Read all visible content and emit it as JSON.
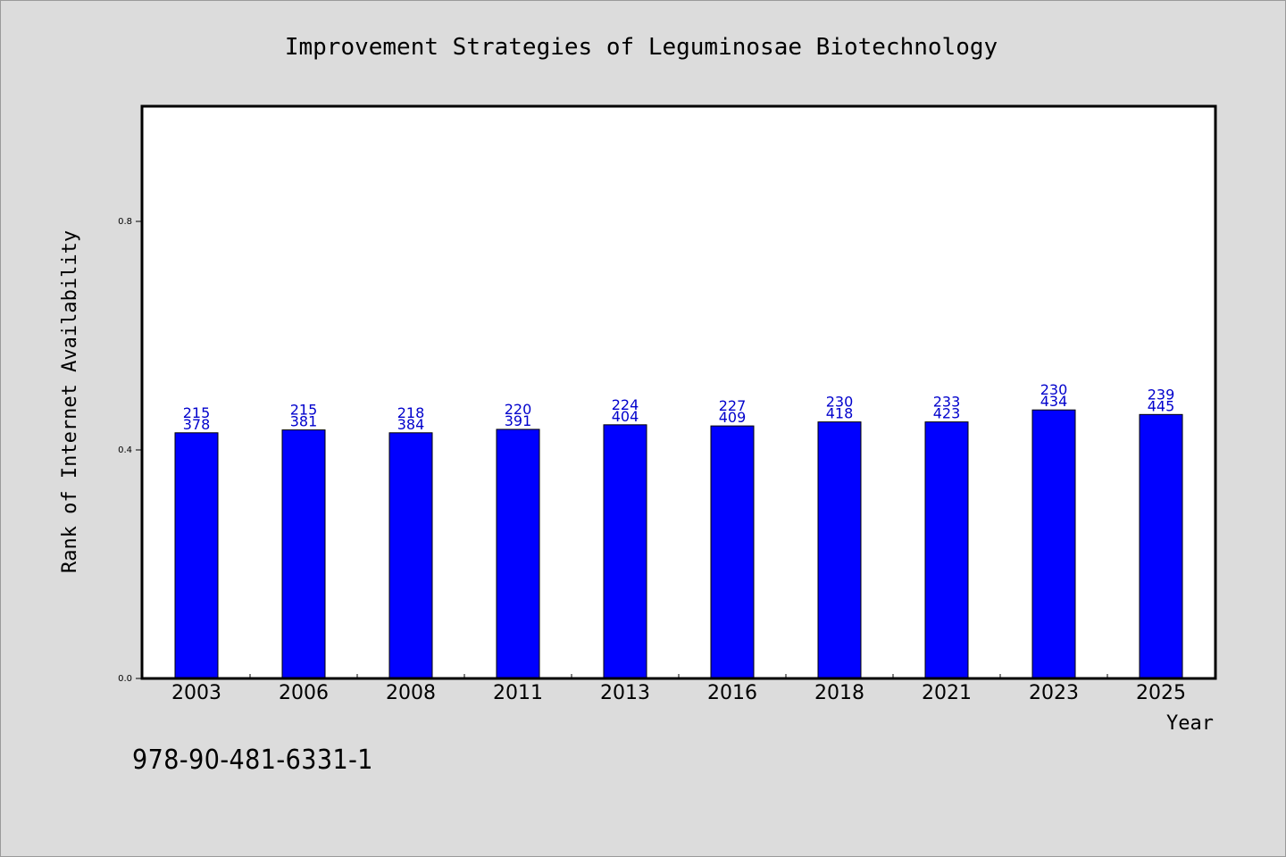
{
  "isbn_text": "978-90-481-6331-1",
  "chart_data": {
    "type": "bar",
    "title": "Improvement Strategies of Leguminosae Biotechnology",
    "xlabel": "Year",
    "ylabel": "Rank of Internet Availability",
    "categories": [
      "2003",
      "2006",
      "2008",
      "2011",
      "2013",
      "2016",
      "2018",
      "2021",
      "2023",
      "2025"
    ],
    "values": [
      0.43,
      0.435,
      0.43,
      0.436,
      0.444,
      0.442,
      0.449,
      0.449,
      0.47,
      0.462
    ],
    "label_top": [
      "215",
      "215",
      "218",
      "220",
      "224",
      "227",
      "230",
      "233",
      "230",
      "239"
    ],
    "label_bottom": [
      "378",
      "381",
      "384",
      "391",
      "404",
      "409",
      "418",
      "423",
      "434",
      "445"
    ],
    "yticks": [
      0.0,
      0.4,
      0.8
    ],
    "ytick_labels": [
      "0.0",
      "0.4",
      "0.8"
    ],
    "ylim": [
      0,
      1.0
    ],
    "grid": false,
    "legend": "none",
    "colors": {
      "bar": "#0000ff",
      "label": "#0000cc",
      "background": "#dcdcdc",
      "plot_bg": "#ffffff"
    }
  }
}
